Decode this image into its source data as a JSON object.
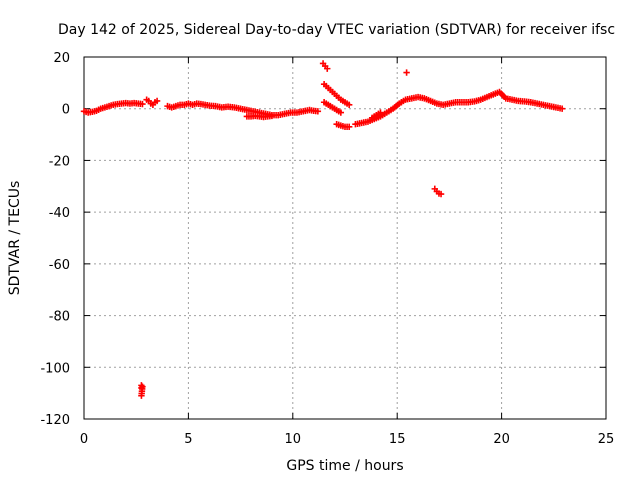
{
  "chart_data": {
    "type": "scatter",
    "title": "Day 142 of 2025, Sidereal Day-to-day VTEC variation (SDTVAR) for receiver ifsc",
    "xlabel": "GPS time / hours",
    "ylabel": "SDTVAR / TECUs",
    "xlim": [
      0,
      25
    ],
    "ylim": [
      -120,
      20
    ],
    "xticks": [
      0,
      5,
      10,
      15,
      20,
      25
    ],
    "yticks": [
      -120,
      -100,
      -80,
      -60,
      -40,
      -20,
      0,
      20
    ],
    "grid": true,
    "point_color": "#ff0000",
    "marker": "plus",
    "series": [
      {
        "name": "SDTVAR",
        "segments": [
          {
            "name": "main-trace-early",
            "x": [
              0.0,
              0.2,
              0.4,
              0.6,
              0.8,
              1.0,
              1.2,
              1.4,
              1.6,
              1.8,
              2.0,
              2.2,
              2.4,
              2.6,
              2.8
            ],
            "y": [
              -1.0,
              -1.5,
              -1.2,
              -0.8,
              0.0,
              0.5,
              1.0,
              1.5,
              1.8,
              2.0,
              2.2,
              2.0,
              2.2,
              2.0,
              1.8
            ]
          },
          {
            "name": "main-trace-3h",
            "x": [
              3.0,
              3.1,
              3.2,
              3.3,
              3.4,
              3.5
            ],
            "y": [
              3.5,
              3.0,
              2.0,
              1.5,
              2.5,
              3.0
            ]
          },
          {
            "name": "main-trace-mid",
            "x": [
              4.0,
              4.2,
              4.4,
              4.6,
              4.8,
              5.0,
              5.2,
              5.4,
              5.6,
              5.8,
              6.0,
              6.3,
              6.6,
              6.9,
              7.2,
              7.5,
              7.8,
              8.1,
              8.4,
              8.7,
              9.0,
              9.3,
              9.6,
              9.9,
              10.2,
              10.5,
              10.8,
              11.0,
              11.2
            ],
            "y": [
              1.0,
              0.5,
              1.0,
              1.5,
              1.5,
              2.0,
              1.5,
              2.0,
              1.8,
              1.5,
              1.2,
              1.0,
              0.5,
              0.8,
              0.5,
              0.0,
              -0.5,
              -1.0,
              -1.5,
              -2.0,
              -2.5,
              -2.5,
              -2.0,
              -1.5,
              -1.5,
              -1.0,
              -0.5,
              -0.8,
              -1.0
            ]
          },
          {
            "name": "trace-dip-8h",
            "x": [
              7.8,
              8.0,
              8.2,
              8.4,
              8.6,
              8.8,
              9.0
            ],
            "y": [
              -3.0,
              -3.0,
              -2.8,
              -3.0,
              -3.2,
              -3.0,
              -2.8
            ]
          },
          {
            "name": "spike-11h-upper",
            "x": [
              11.45,
              11.55,
              11.65
            ],
            "y": [
              17.5,
              16.5,
              15.5
            ]
          },
          {
            "name": "arc-11h-a",
            "x": [
              11.5,
              11.7,
              11.9,
              12.1,
              12.3,
              12.5,
              12.7
            ],
            "y": [
              9.5,
              8.0,
              6.5,
              5.0,
              3.5,
              2.5,
              1.5
            ]
          },
          {
            "name": "arc-11h-b",
            "x": [
              11.5,
              11.7,
              11.9,
              12.1,
              12.3
            ],
            "y": [
              2.5,
              1.5,
              0.5,
              -0.5,
              -1.5
            ]
          },
          {
            "name": "trace-12h-low",
            "x": [
              12.1,
              12.3,
              12.5,
              12.7
            ],
            "y": [
              -6.0,
              -6.5,
              -7.0,
              -7.0
            ]
          },
          {
            "name": "main-trace-late",
            "x": [
              13.0,
              13.3,
              13.6,
              13.9,
              14.2,
              14.5,
              14.8,
              15.1,
              15.4,
              15.7,
              16.0,
              16.3,
              16.6,
              16.9,
              17.2,
              17.5,
              17.8,
              18.1,
              18.4,
              18.7,
              19.0,
              19.3,
              19.6,
              19.9,
              20.2,
              20.5,
              20.8,
              21.1,
              21.4,
              21.7,
              22.0,
              22.3,
              22.6,
              22.9
            ],
            "y": [
              -6.0,
              -5.5,
              -5.0,
              -4.0,
              -3.0,
              -1.5,
              0.0,
              2.0,
              3.5,
              4.0,
              4.5,
              4.0,
              3.0,
              2.0,
              1.5,
              2.0,
              2.5,
              2.5,
              2.5,
              2.8,
              3.5,
              4.5,
              5.5,
              6.5,
              4.0,
              3.5,
              3.0,
              2.8,
              2.5,
              2.0,
              1.5,
              1.0,
              0.5,
              0.0
            ]
          },
          {
            "name": "trace-13h-recovery",
            "x": [
              13.8,
              14.0,
              14.2
            ],
            "y": [
              -3.5,
              -2.5,
              -1.5
            ]
          },
          {
            "name": "outlier-15h",
            "x": [
              15.45
            ],
            "y": [
              14.0
            ]
          },
          {
            "name": "outlier-17h",
            "x": [
              16.8,
              16.9,
              17.0,
              17.1
            ],
            "y": [
              -31.0,
              -32.0,
              -32.8,
              -33.0
            ]
          },
          {
            "name": "outlier-3h-low",
            "x": [
              2.75,
              2.75,
              2.8,
              2.75
            ],
            "y": [
              -107.0,
              -108.0,
              -107.5,
              -111.0
            ]
          }
        ]
      }
    ]
  }
}
